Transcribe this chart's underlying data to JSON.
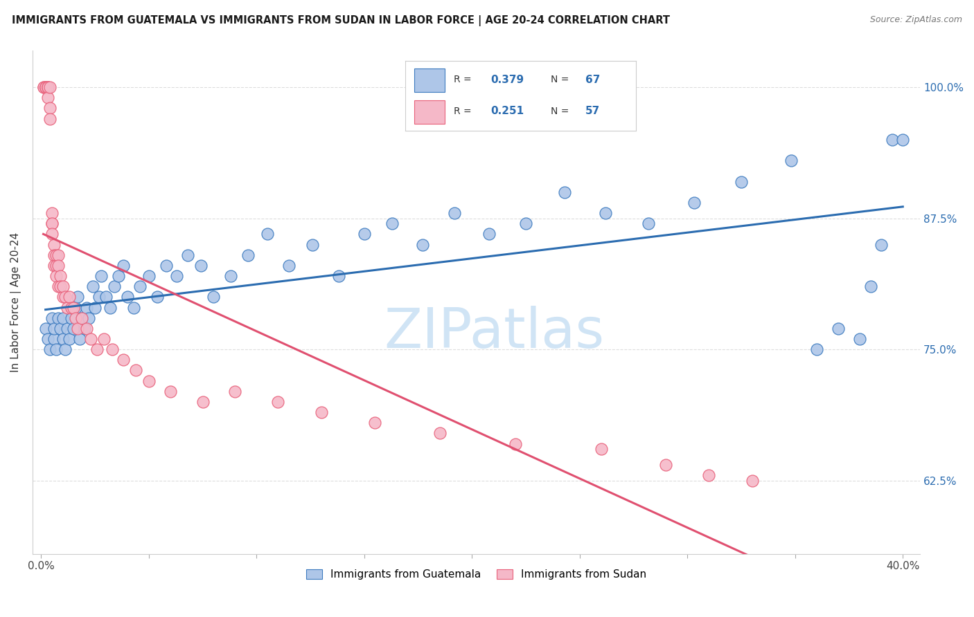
{
  "title": "IMMIGRANTS FROM GUATEMALA VS IMMIGRANTS FROM SUDAN IN LABOR FORCE | AGE 20-24 CORRELATION CHART",
  "source": "Source: ZipAtlas.com",
  "ylabel": "In Labor Force | Age 20-24",
  "xlim": [
    -0.004,
    0.408
  ],
  "ylim": [
    0.555,
    1.035
  ],
  "yticks": [
    0.625,
    0.75,
    0.875,
    1.0
  ],
  "ytick_labels": [
    "62.5%",
    "75.0%",
    "87.5%",
    "100.0%"
  ],
  "xtick_positions": [
    0.0,
    0.05,
    0.1,
    0.15,
    0.2,
    0.25,
    0.3,
    0.35,
    0.4
  ],
  "legend_r_blue": "0.379",
  "legend_n_blue": "67",
  "legend_r_pink": "0.251",
  "legend_n_pink": "57",
  "blue_face": "#aec6e8",
  "blue_edge": "#3d7bbf",
  "pink_face": "#f5b8c8",
  "pink_edge": "#e8607a",
  "blue_line": "#2b6cb0",
  "pink_line": "#e05070",
  "watermark": "ZIPatlas",
  "watermark_color": "#d0e4f5",
  "guatemala_x": [
    0.002,
    0.003,
    0.004,
    0.005,
    0.006,
    0.006,
    0.007,
    0.008,
    0.009,
    0.01,
    0.01,
    0.011,
    0.012,
    0.013,
    0.014,
    0.015,
    0.016,
    0.017,
    0.018,
    0.019,
    0.02,
    0.021,
    0.022,
    0.024,
    0.025,
    0.027,
    0.028,
    0.03,
    0.032,
    0.034,
    0.036,
    0.038,
    0.04,
    0.043,
    0.046,
    0.05,
    0.054,
    0.058,
    0.063,
    0.068,
    0.074,
    0.08,
    0.088,
    0.096,
    0.105,
    0.115,
    0.126,
    0.138,
    0.15,
    0.163,
    0.177,
    0.192,
    0.208,
    0.225,
    0.243,
    0.262,
    0.282,
    0.303,
    0.325,
    0.348,
    0.36,
    0.37,
    0.38,
    0.385,
    0.39,
    0.395,
    0.4
  ],
  "guatemala_y": [
    0.77,
    0.76,
    0.75,
    0.78,
    0.76,
    0.77,
    0.75,
    0.78,
    0.77,
    0.76,
    0.78,
    0.75,
    0.77,
    0.76,
    0.78,
    0.77,
    0.79,
    0.8,
    0.76,
    0.78,
    0.77,
    0.79,
    0.78,
    0.81,
    0.79,
    0.8,
    0.82,
    0.8,
    0.79,
    0.81,
    0.82,
    0.83,
    0.8,
    0.79,
    0.81,
    0.82,
    0.8,
    0.83,
    0.82,
    0.84,
    0.83,
    0.8,
    0.82,
    0.84,
    0.86,
    0.83,
    0.85,
    0.82,
    0.86,
    0.87,
    0.85,
    0.88,
    0.86,
    0.87,
    0.9,
    0.88,
    0.87,
    0.89,
    0.91,
    0.93,
    0.75,
    0.77,
    0.76,
    0.81,
    0.85,
    0.95,
    0.95
  ],
  "sudan_x": [
    0.001,
    0.001,
    0.002,
    0.002,
    0.002,
    0.003,
    0.003,
    0.003,
    0.003,
    0.004,
    0.004,
    0.004,
    0.005,
    0.005,
    0.005,
    0.005,
    0.006,
    0.006,
    0.006,
    0.007,
    0.007,
    0.007,
    0.008,
    0.008,
    0.008,
    0.009,
    0.009,
    0.01,
    0.01,
    0.011,
    0.012,
    0.013,
    0.014,
    0.015,
    0.016,
    0.017,
    0.019,
    0.021,
    0.023,
    0.026,
    0.029,
    0.033,
    0.038,
    0.044,
    0.05,
    0.06,
    0.075,
    0.09,
    0.11,
    0.13,
    0.155,
    0.185,
    0.22,
    0.26,
    0.29,
    0.31,
    0.33
  ],
  "sudan_y": [
    1.0,
    1.0,
    1.0,
    1.0,
    1.0,
    1.0,
    1.0,
    1.0,
    0.99,
    1.0,
    0.98,
    0.97,
    0.87,
    0.88,
    0.87,
    0.86,
    0.85,
    0.84,
    0.83,
    0.84,
    0.83,
    0.82,
    0.84,
    0.83,
    0.81,
    0.82,
    0.81,
    0.8,
    0.81,
    0.8,
    0.79,
    0.8,
    0.79,
    0.79,
    0.78,
    0.77,
    0.78,
    0.77,
    0.76,
    0.75,
    0.76,
    0.75,
    0.74,
    0.73,
    0.72,
    0.71,
    0.7,
    0.71,
    0.7,
    0.69,
    0.68,
    0.67,
    0.66,
    0.655,
    0.64,
    0.63,
    0.625
  ]
}
